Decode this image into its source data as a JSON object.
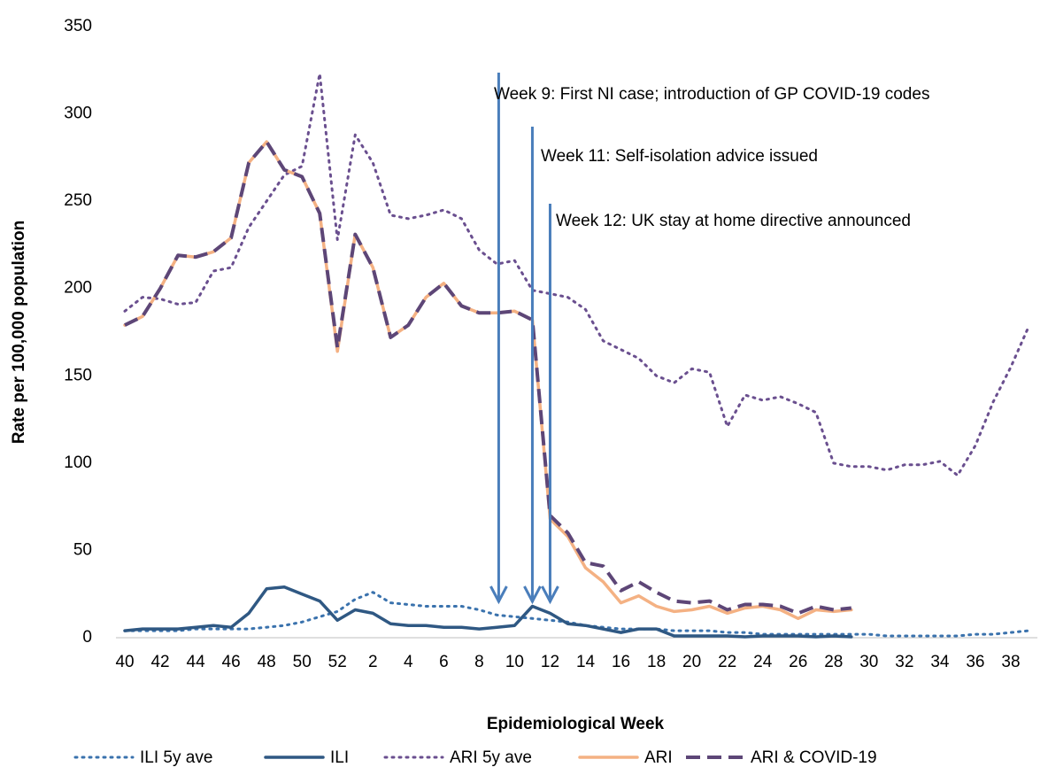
{
  "chart_data": {
    "type": "line",
    "y_axis_label": "Rate per 100,000 population",
    "x_axis_label": "Epidemiological Week",
    "categories": [
      "40",
      null,
      "42",
      null,
      "44",
      null,
      "46",
      null,
      "48",
      null,
      "50",
      null,
      "52",
      null,
      "2",
      null,
      "4",
      null,
      "6",
      null,
      "8",
      null,
      "10",
      null,
      "12",
      null,
      "14",
      null,
      "16",
      null,
      "18",
      null,
      "20",
      null,
      "22",
      null,
      "24",
      null,
      "26",
      null,
      "28",
      null,
      "30",
      null,
      "32",
      null,
      "34",
      null,
      "36",
      null,
      "38",
      null
    ],
    "ylim": [
      0,
      350
    ],
    "yticks": [
      0,
      50,
      100,
      150,
      200,
      250,
      300,
      350
    ],
    "legend": "bottom",
    "series": [
      {
        "name": "ILI 5y ave",
        "color": "#3a72ad",
        "dash": "dotted",
        "values": [
          4,
          4,
          4,
          4,
          5,
          5,
          5,
          5,
          6,
          7,
          9,
          12,
          15,
          22,
          26,
          20,
          19,
          18,
          18,
          18,
          16,
          13,
          12,
          11,
          10,
          9,
          7,
          6,
          5,
          5,
          5,
          4,
          4,
          4,
          3,
          3,
          2,
          2,
          2,
          2,
          2,
          2,
          2,
          1,
          1,
          1,
          1,
          1,
          2,
          2,
          3,
          4
        ]
      },
      {
        "name": "ILI",
        "color": "#2f5883",
        "dash": "solid",
        "values": [
          4,
          5,
          5,
          5,
          6,
          7,
          6,
          14,
          28,
          29,
          25,
          21,
          10,
          16,
          14,
          8,
          7,
          7,
          6,
          6,
          5,
          6,
          7,
          18,
          14,
          8,
          7,
          5,
          3,
          5,
          5,
          1,
          1,
          1,
          1,
          0.5,
          1,
          1,
          1,
          0.5,
          1,
          0.5,
          null,
          null,
          null,
          null,
          null,
          null,
          null,
          null,
          null,
          null
        ]
      },
      {
        "name": "ARI 5y ave",
        "color": "#6a4f8f",
        "dash": "dotted",
        "values": [
          187,
          195,
          194,
          191,
          192,
          210,
          212,
          235,
          250,
          265,
          270,
          323,
          228,
          288,
          272,
          242,
          240,
          242,
          245,
          240,
          222,
          214,
          216,
          199,
          197,
          195,
          188,
          170,
          165,
          160,
          150,
          146,
          154,
          152,
          121,
          139,
          136,
          138,
          134,
          129,
          100,
          98,
          98,
          96,
          99,
          99,
          101,
          93,
          110,
          135,
          155,
          178
        ]
      },
      {
        "name": "ARI",
        "color": "#f4b183",
        "dash": "solid",
        "values": [
          179,
          184,
          200,
          219,
          218,
          221,
          229,
          272,
          284,
          268,
          264,
          243,
          164,
          231,
          212,
          172,
          179,
          195,
          203,
          190,
          186,
          186,
          187,
          182,
          68,
          58,
          40,
          32,
          20,
          24,
          18,
          15,
          16,
          18,
          14,
          17,
          18,
          16,
          11,
          16,
          15,
          16,
          null,
          null,
          null,
          null,
          null,
          null,
          null,
          null,
          null,
          null
        ]
      },
      {
        "name": "ARI & COVID-19",
        "color": "#5d4677",
        "dash": "dashed",
        "values": [
          179,
          184,
          200,
          219,
          218,
          221,
          229,
          272,
          284,
          268,
          264,
          243,
          166,
          231,
          212,
          172,
          179,
          195,
          203,
          190,
          186,
          186,
          187,
          182,
          70,
          60,
          43,
          41,
          27,
          32,
          26,
          21,
          20,
          21,
          16,
          19,
          19,
          18,
          14,
          18,
          16,
          17,
          null,
          null,
          null,
          null,
          null,
          null,
          null,
          null,
          null,
          null
        ]
      }
    ],
    "annotations": [
      "Week 9: First NI case; introduction of GP COVID-19 codes",
      "Week 11: Self-isolation advice issued",
      "Week 12: UK stay at home directive announced"
    ]
  }
}
